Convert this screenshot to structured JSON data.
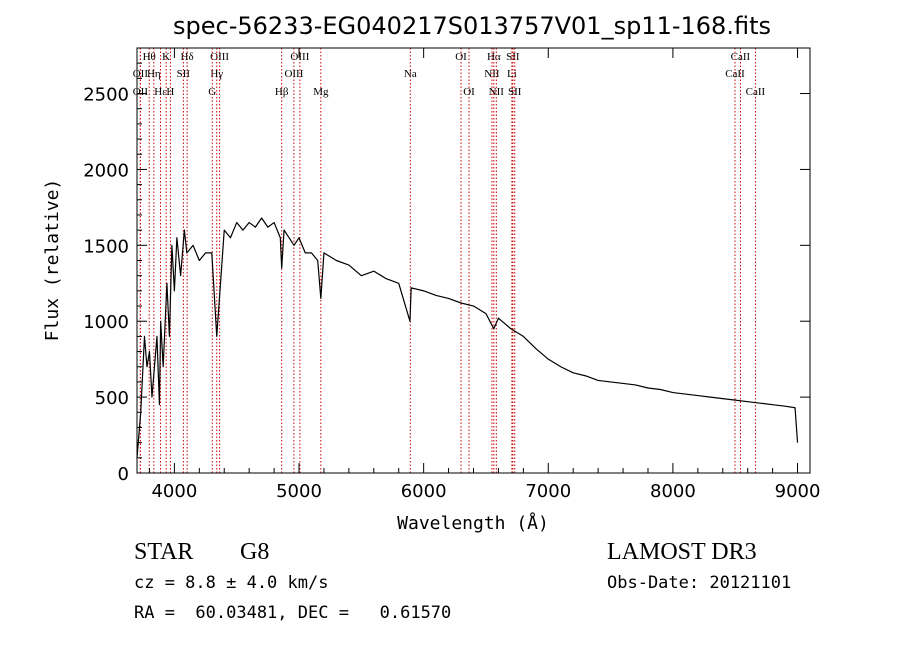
{
  "chart_data": {
    "type": "line",
    "title": "spec-56233-EG040217S013757V01_sp11-168.fits",
    "xlabel": "Wavelength (Å)",
    "ylabel": "Flux (relative)",
    "xlim": [
      3700,
      9100
    ],
    "ylim": [
      0,
      2800
    ],
    "x_ticks": [
      4000,
      5000,
      6000,
      7000,
      8000,
      9000
    ],
    "y_ticks": [
      0,
      500,
      1000,
      1500,
      2000,
      2500
    ],
    "x_tick_labels": [
      "4000",
      "5000",
      "6000",
      "7000",
      "8000",
      "9000"
    ],
    "y_tick_labels": [
      "0",
      "500",
      "1000",
      "1500",
      "2000",
      "2500"
    ],
    "grid": false,
    "series": [
      {
        "x": [
          3700,
          3730,
          3760,
          3780,
          3800,
          3820,
          3840,
          3860,
          3880,
          3890,
          3910,
          3940,
          3960,
          3980,
          4000,
          4020,
          4050,
          4080,
          4100,
          4150,
          4200,
          4250,
          4300,
          4340,
          4400,
          4450,
          4500,
          4550,
          4600,
          4650,
          4700,
          4750,
          4800,
          4850,
          4861,
          4880,
          4920,
          4960,
          5000,
          5050,
          5100,
          5150,
          5175,
          5200,
          5300,
          5400,
          5500,
          5600,
          5700,
          5800,
          5890,
          5900,
          6000,
          6100,
          6200,
          6300,
          6400,
          6500,
          6563,
          6600,
          6700,
          6800,
          6900,
          7000,
          7100,
          7200,
          7300,
          7400,
          7500,
          7600,
          7700,
          7800,
          7900,
          8000,
          8100,
          8200,
          8300,
          8400,
          8500,
          8600,
          8700,
          8800,
          8900,
          8980,
          9000
        ],
        "y": [
          100,
          400,
          900,
          700,
          800,
          500,
          700,
          900,
          450,
          1000,
          700,
          1250,
          900,
          1500,
          1200,
          1550,
          1300,
          1600,
          1450,
          1500,
          1400,
          1450,
          1450,
          900,
          1600,
          1550,
          1650,
          1600,
          1650,
          1620,
          1680,
          1620,
          1650,
          1550,
          1350,
          1600,
          1550,
          1500,
          1550,
          1450,
          1450,
          1400,
          1150,
          1450,
          1400,
          1370,
          1300,
          1330,
          1280,
          1250,
          1000,
          1220,
          1200,
          1170,
          1150,
          1120,
          1100,
          1050,
          950,
          1020,
          950,
          900,
          820,
          750,
          700,
          660,
          640,
          610,
          600,
          590,
          580,
          560,
          550,
          530,
          520,
          510,
          500,
          490,
          480,
          470,
          460,
          450,
          440,
          430,
          200
        ]
      }
    ],
    "line_color": "#000000",
    "line_marker_color": "#cc0000",
    "spectral_lines": [
      {
        "label": "Hθ",
        "x": 3798,
        "row": 0
      },
      {
        "label": "OII",
        "x": 3727,
        "row": 1
      },
      {
        "label": "OII",
        "x": 3727,
        "row": 2
      },
      {
        "label": "Hη",
        "x": 3835,
        "row": 1
      },
      {
        "label": "Hε",
        "x": 3889,
        "row": 2
      },
      {
        "label": "K",
        "x": 3934,
        "row": 0
      },
      {
        "label": "H",
        "x": 3968,
        "row": 2
      },
      {
        "label": "Hδ",
        "x": 4102,
        "row": 0
      },
      {
        "label": "SII",
        "x": 4072,
        "row": 1
      },
      {
        "label": "OIII",
        "x": 4363,
        "row": 0
      },
      {
        "label": "Hγ",
        "x": 4340,
        "row": 1
      },
      {
        "label": "G",
        "x": 4304,
        "row": 2
      },
      {
        "label": "OIII",
        "x": 5007,
        "row": 0
      },
      {
        "label": "OIII",
        "x": 4959,
        "row": 1
      },
      {
        "label": "Hβ",
        "x": 4861,
        "row": 2
      },
      {
        "label": "Mg",
        "x": 5175,
        "row": 2
      },
      {
        "label": "Na",
        "x": 5893,
        "row": 1
      },
      {
        "label": "OI",
        "x": 6300,
        "row": 0
      },
      {
        "label": "OI",
        "x": 6364,
        "row": 2
      },
      {
        "label": "Hα",
        "x": 6563,
        "row": 0
      },
      {
        "label": "SII",
        "x": 6716,
        "row": 0
      },
      {
        "label": "NII",
        "x": 6548,
        "row": 1
      },
      {
        "label": "Li",
        "x": 6708,
        "row": 1
      },
      {
        "label": "NII",
        "x": 6583,
        "row": 2
      },
      {
        "label": "SII",
        "x": 6731,
        "row": 2
      },
      {
        "label": "CaII",
        "x": 8542,
        "row": 0
      },
      {
        "label": "CaII",
        "x": 8498,
        "row": 1
      },
      {
        "label": "CaII",
        "x": 8662,
        "row": 2
      }
    ]
  },
  "footer": {
    "object_class": "STAR",
    "subclass": "G8",
    "survey": "LAMOST DR3",
    "redshift": "cz = 8.8 ± 4.0 km/s",
    "obs_date": "Obs-Date: 20121101",
    "coords": "RA =  60.03481, DEC =   0.61570"
  }
}
